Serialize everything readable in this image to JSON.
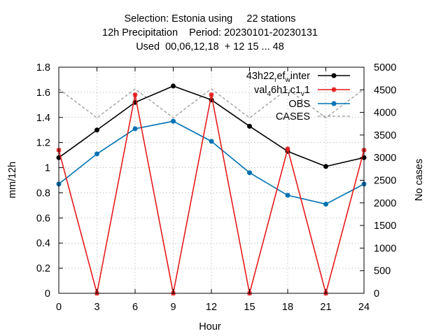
{
  "chart_data": {
    "type": "line",
    "title_lines": [
      "Selection: Estonia using     22 stations",
      "12h Precipitation    Period: 20230101-20230131",
      "Used  00,06,12,18  + 12 15 ... 48"
    ],
    "xlabel": "Hour",
    "ylabel": "mm/12h",
    "y2label": "No cases",
    "xlim": [
      0,
      24
    ],
    "ylim": [
      0,
      1.8
    ],
    "y2lim": [
      0,
      5000
    ],
    "x_ticks": [
      "0",
      "3",
      "6",
      "9",
      "12",
      "15",
      "18",
      "21",
      "24"
    ],
    "y_ticks": [
      "0",
      "0.2",
      "0.4",
      "0.6",
      "0.8",
      "1",
      "1.2",
      "1.4",
      "1.6",
      "1.8"
    ],
    "y2_ticks": [
      "0",
      "500",
      "1000",
      "1500",
      "2000",
      "2500",
      "3000",
      "3500",
      "4000",
      "4500",
      "5000"
    ],
    "grid": true,
    "legend_position": "top-right",
    "x": [
      0,
      3,
      6,
      9,
      12,
      15,
      18,
      21,
      24
    ],
    "series": [
      {
        "name": "43h22_ref_w_inter",
        "legend": {
          "main": "43h22",
          "sub1": "r",
          "mid1": "ef",
          "sub2": "w",
          "mid2": "inter"
        },
        "axis": "y1",
        "color": "#000000",
        "style": "solid",
        "marker": "circle",
        "values": [
          1.08,
          1.3,
          1.52,
          1.65,
          1.54,
          1.33,
          1.13,
          1.01,
          1.08
        ]
      },
      {
        "name": "val_4 6h1_rc1_v1",
        "legend": {
          "main": "val",
          "sub1": "4",
          "mid1": "6h1",
          "sub2": "r",
          "mid2": "c1",
          "sub3": "v",
          "end": "1"
        },
        "axis": "y1",
        "color": "#e41a1c",
        "style": "solid",
        "marker": "star",
        "values": [
          1.14,
          0.0,
          1.58,
          0.0,
          1.58,
          0.0,
          1.15,
          0.0,
          1.14
        ]
      },
      {
        "name": "OBS",
        "legend": {
          "main": "OBS"
        },
        "axis": "y1",
        "color": "#0072b2",
        "style": "solid",
        "marker": "circle",
        "values": [
          0.87,
          1.11,
          1.31,
          1.37,
          1.21,
          0.96,
          0.78,
          0.71,
          0.87
        ]
      },
      {
        "name": "CASES",
        "legend": {
          "main": "CASES"
        },
        "axis": "y2",
        "color": "#999999",
        "style": "dashed",
        "marker": "none",
        "values": [
          4520,
          3880,
          4520,
          3880,
          4520,
          3880,
          4520,
          3880,
          4520
        ]
      }
    ]
  }
}
